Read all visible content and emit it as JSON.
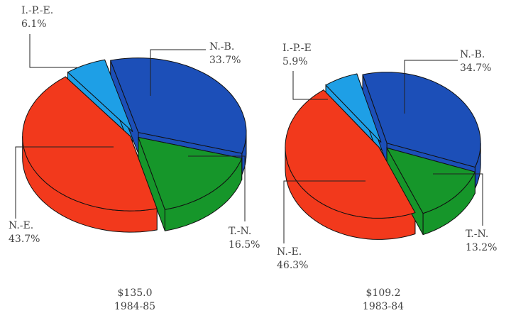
{
  "chart_data": [
    {
      "type": "pie",
      "title": "$135.0",
      "subtitle": "1984-85",
      "categories": [
        "N.-B.",
        "T.-N.",
        "N.-E.",
        "I.-P.-E."
      ],
      "values": [
        33.7,
        16.5,
        43.7,
        6.1
      ],
      "value_labels": [
        "33.7%",
        "16.5%",
        "43.7%",
        "6.1%"
      ],
      "colors": [
        "#1c4fb8",
        "#16962a",
        "#f2391c",
        "#1e9fe6"
      ]
    },
    {
      "type": "pie",
      "title": "$109.2",
      "subtitle": "1983-84",
      "categories": [
        "N.-B.",
        "T.-N.",
        "N.-E.",
        "I.-P.-E"
      ],
      "values": [
        34.7,
        13.2,
        46.3,
        5.9
      ],
      "value_labels": [
        "34.7%",
        "13.2%",
        "46.3%",
        "5.9%"
      ],
      "colors": [
        "#1c4fb8",
        "#16962a",
        "#f2391c",
        "#1e9fe6"
      ]
    }
  ]
}
